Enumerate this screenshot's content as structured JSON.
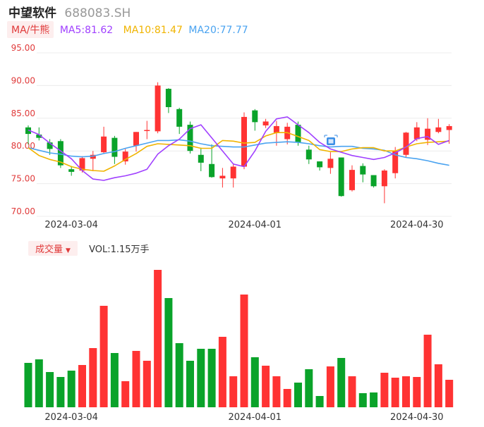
{
  "header": {
    "name": "中望软件",
    "code": "688083.SH"
  },
  "legend": {
    "ma_button": "MA/牛熊",
    "ma5": "MA5:81.62",
    "ma10": "MA10:81.47",
    "ma20": "MA20:77.77"
  },
  "volume_legend": {
    "button": "成交量",
    "value": "VOL:1.15万手"
  },
  "colors": {
    "up": "#ff3333",
    "down": "#0aa32a",
    "ma5": "#a040ff",
    "ma10": "#f0b400",
    "ma20": "#4aa3f0"
  },
  "chart_data": [
    {
      "type": "candlestick",
      "ylim": [
        70,
        95
      ],
      "yticks": [
        "95.00",
        "90.00",
        "85.00",
        "80.00",
        "75.00",
        "70.00"
      ],
      "xticks": [
        {
          "index": 4,
          "label": "2024-03-04"
        },
        {
          "index": 21,
          "label": "2024-04-01"
        },
        {
          "index": 36,
          "label": "2024-04-30"
        }
      ],
      "candles": [
        {
          "o": 83.6,
          "c": 82.6,
          "h": 83.9,
          "l": 81.0
        },
        {
          "o": 82.5,
          "c": 82.0,
          "h": 83.6,
          "l": 81.6
        },
        {
          "o": 81.3,
          "c": 80.3,
          "h": 81.8,
          "l": 79.4
        },
        {
          "o": 81.5,
          "c": 77.8,
          "h": 81.8,
          "l": 77.4
        },
        {
          "o": 77.2,
          "c": 76.8,
          "h": 77.7,
          "l": 76.2
        },
        {
          "o": 77.0,
          "c": 78.9,
          "h": 79.2,
          "l": 76.7
        },
        {
          "o": 78.8,
          "c": 79.4,
          "h": 80.0,
          "l": 76.9
        },
        {
          "o": 79.8,
          "c": 82.2,
          "h": 83.7,
          "l": 79.6
        },
        {
          "o": 82.0,
          "c": 79.1,
          "h": 82.3,
          "l": 78.0
        },
        {
          "o": 78.4,
          "c": 79.9,
          "h": 80.3,
          "l": 77.9
        },
        {
          "o": 80.8,
          "c": 82.9,
          "h": 82.9,
          "l": 79.9
        },
        {
          "o": 83.1,
          "c": 83.2,
          "h": 84.6,
          "l": 81.8
        },
        {
          "o": 83.0,
          "c": 90.0,
          "h": 90.5,
          "l": 82.7
        },
        {
          "o": 89.5,
          "c": 86.7,
          "h": 89.6,
          "l": 85.8
        },
        {
          "o": 86.4,
          "c": 83.7,
          "h": 86.6,
          "l": 82.6
        },
        {
          "o": 84.0,
          "c": 80.0,
          "h": 84.5,
          "l": 79.6
        },
        {
          "o": 79.4,
          "c": 78.2,
          "h": 80.5,
          "l": 76.9
        },
        {
          "o": 78.0,
          "c": 76.0,
          "h": 81.0,
          "l": 75.9
        },
        {
          "o": 75.8,
          "c": 76.2,
          "h": 77.4,
          "l": 74.4
        },
        {
          "o": 75.8,
          "c": 77.6,
          "h": 78.0,
          "l": 74.4
        },
        {
          "o": 77.6,
          "c": 85.2,
          "h": 85.9,
          "l": 77.2
        },
        {
          "o": 86.2,
          "c": 84.4,
          "h": 86.4,
          "l": 83.1
        },
        {
          "o": 83.9,
          "c": 84.5,
          "h": 84.9,
          "l": 83.5
        },
        {
          "o": 82.8,
          "c": 83.8,
          "h": 84.6,
          "l": 80.8
        },
        {
          "o": 81.8,
          "c": 83.7,
          "h": 84.3,
          "l": 81.0
        },
        {
          "o": 84.0,
          "c": 81.3,
          "h": 84.5,
          "l": 80.8
        },
        {
          "o": 80.2,
          "c": 78.7,
          "h": 80.8,
          "l": 78.0
        },
        {
          "o": 78.4,
          "c": 77.5,
          "h": 78.4,
          "l": 77.0
        },
        {
          "o": 77.4,
          "c": 78.8,
          "h": 79.8,
          "l": 76.5
        },
        {
          "o": 79.0,
          "c": 73.1,
          "h": 79.0,
          "l": 73.0
        },
        {
          "o": 74.0,
          "c": 77.1,
          "h": 77.8,
          "l": 73.8
        },
        {
          "o": 77.7,
          "c": 76.4,
          "h": 78.1,
          "l": 75.2
        },
        {
          "o": 76.3,
          "c": 74.6,
          "h": 76.3,
          "l": 74.4
        },
        {
          "o": 74.6,
          "c": 77.0,
          "h": 77.2,
          "l": 72.0
        },
        {
          "o": 76.6,
          "c": 80.0,
          "h": 80.6,
          "l": 75.8
        },
        {
          "o": 79.4,
          "c": 82.8,
          "h": 82.9,
          "l": 79.0
        },
        {
          "o": 81.8,
          "c": 83.6,
          "h": 84.4,
          "l": 81.5
        },
        {
          "o": 81.7,
          "c": 83.4,
          "h": 85.0,
          "l": 80.9
        },
        {
          "o": 82.9,
          "c": 83.6,
          "h": 84.9,
          "l": 82.7
        },
        {
          "o": 83.2,
          "c": 83.8,
          "h": 84.1,
          "l": 81.1
        }
      ],
      "ma5": [
        83.2,
        82.5,
        81.2,
        80.0,
        78.8,
        77.0,
        75.7,
        75.5,
        75.9,
        76.2,
        76.6,
        77.2,
        79.5,
        80.8,
        81.8,
        83.4,
        84.0,
        82.0,
        80.0,
        78.0,
        77.6,
        80.0,
        83.0,
        84.9,
        85.2,
        84.0,
        82.8,
        81.3,
        80.3,
        79.8,
        79.3,
        79.0,
        78.7,
        79.0,
        79.7,
        80.6,
        81.9,
        82.2,
        81.0,
        81.6
      ],
      "ma10": [
        80.5,
        79.3,
        78.7,
        78.3,
        77.6,
        77.2,
        77.0,
        76.9,
        77.7,
        78.7,
        79.6,
        80.7,
        81.1,
        81.0,
        80.9,
        80.8,
        80.4,
        80.4,
        81.6,
        81.5,
        81.2,
        81.3,
        82.3,
        82.8,
        82.8,
        82.2,
        81.6,
        80.2,
        79.9,
        79.9,
        80.3,
        80.5,
        80.5,
        80.0,
        80.0,
        80.6,
        81.1,
        81.3,
        81.4,
        81.5
      ],
      "ma20": [
        80.5,
        80.1,
        79.7,
        79.5,
        79.2,
        79.1,
        79.2,
        79.6,
        79.9,
        80.4,
        80.8,
        81.2,
        81.6,
        81.6,
        81.7,
        81.5,
        81.1,
        80.8,
        80.7,
        80.6,
        80.6,
        80.9,
        81.2,
        81.3,
        81.4,
        81.3,
        81.1,
        80.8,
        80.6,
        80.7,
        80.7,
        80.4,
        80.3,
        80.1,
        79.4,
        79.0,
        78.8,
        78.5,
        78.1,
        77.8
      ]
    },
    {
      "type": "bar",
      "series_name": "成交量",
      "volumes": [
        63,
        68,
        50,
        43,
        52,
        60,
        84,
        144,
        77,
        37,
        80,
        66,
        195,
        155,
        91,
        66,
        83,
        83,
        100,
        44,
        160,
        71,
        59,
        44,
        26,
        35,
        54,
        16,
        58,
        70,
        44,
        20,
        21,
        49,
        42,
        44,
        43,
        103,
        61,
        39
      ]
    }
  ]
}
